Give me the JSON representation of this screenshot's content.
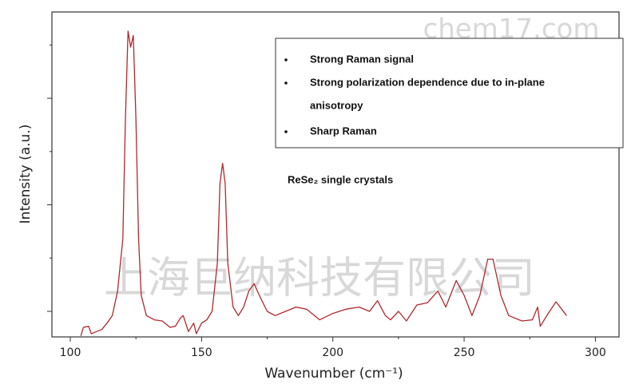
{
  "chart_data": {
    "type": "line",
    "xlabel": "Wavenumber (cm⁻¹)",
    "ylabel": "Intensity (a.u.)",
    "annotations": [
      "Strong Raman signal",
      "Strong polarization dependence due to in-plane",
      "anisotropy",
      "Sharp Raman"
    ],
    "sample_label": "ReSe₂ single crystals",
    "watermarks": [
      "chem17.com",
      "上海巨纳科技有限公司"
    ],
    "xlim": [
      93,
      309
    ],
    "xticks": [
      100,
      150,
      200,
      250,
      300
    ],
    "xminor_ticks": [
      125,
      175,
      225,
      275
    ],
    "ylim": [
      0.76,
      3.81
    ],
    "yticks": [
      1,
      2,
      3
    ],
    "yminor_ticks": [
      1.5,
      2.5,
      3.5
    ],
    "ytick_labels_shown": false,
    "x": [
      104,
      105,
      107,
      108,
      110,
      112,
      114,
      116,
      118,
      120,
      121,
      122,
      123,
      124,
      125,
      126,
      127,
      129,
      132,
      135,
      138,
      140,
      142,
      143,
      145,
      147,
      148,
      150,
      152,
      154,
      156,
      157,
      158,
      159,
      160,
      162,
      164,
      166,
      168,
      170,
      172,
      175,
      178,
      182,
      186,
      190,
      195,
      200,
      205,
      210,
      214,
      217,
      220,
      222,
      225,
      228,
      232,
      236,
      240,
      243,
      247,
      250,
      253,
      256,
      259,
      261,
      264,
      267,
      272,
      276,
      278,
      279,
      282,
      285,
      289
    ],
    "series": [
      {
        "color": "#b3282d",
        "values": [
          0.77,
          0.85,
          0.86,
          0.79,
          0.81,
          0.83,
          0.89,
          0.96,
          1.19,
          1.68,
          2.8,
          3.63,
          3.48,
          3.59,
          2.8,
          1.68,
          1.15,
          0.96,
          0.92,
          0.91,
          0.85,
          0.86,
          0.94,
          0.96,
          0.81,
          0.89,
          0.79,
          0.89,
          0.92,
          1.0,
          1.45,
          2.2,
          2.39,
          2.2,
          1.45,
          1.04,
          0.96,
          1.04,
          1.19,
          1.26,
          1.15,
          1.0,
          0.96,
          1.0,
          1.04,
          1.02,
          0.92,
          0.98,
          1.02,
          1.04,
          1.0,
          1.1,
          0.96,
          0.92,
          1.0,
          0.91,
          1.06,
          1.08,
          1.19,
          1.04,
          1.29,
          1.15,
          0.96,
          1.15,
          1.49,
          1.49,
          1.15,
          0.96,
          0.91,
          0.92,
          1.04,
          0.86,
          0.98,
          1.09,
          0.96
        ]
      }
    ]
  }
}
